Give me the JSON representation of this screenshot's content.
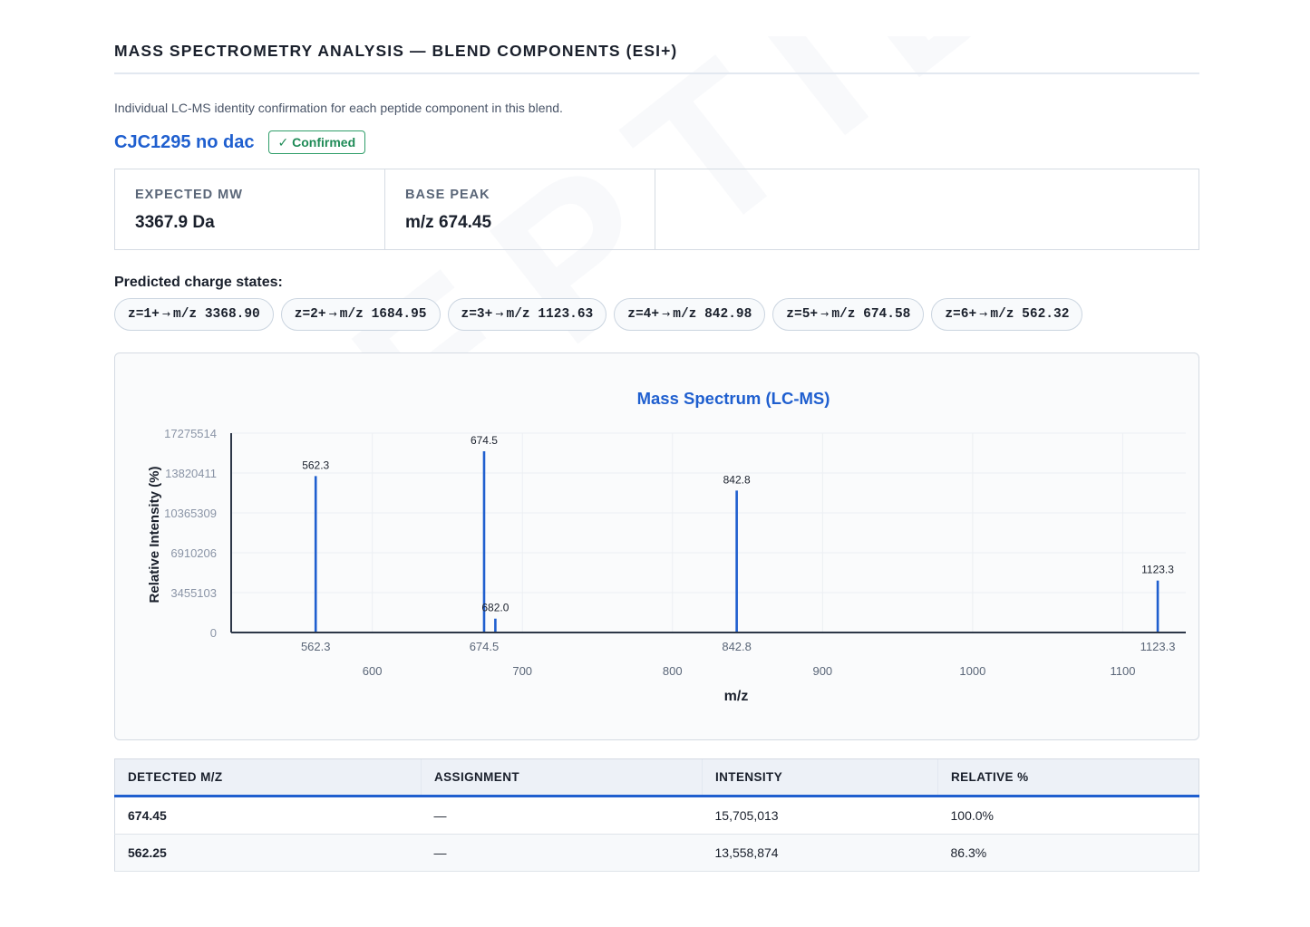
{
  "watermark": "PEPTIDE VERIFY",
  "section_title": "MASS SPECTROMETRY ANALYSIS — BLEND COMPONENTS (ESI+)",
  "intro": "Individual LC-MS identity confirmation for each peptide component in this blend.",
  "component": {
    "name": "CJC1295 no dac",
    "status": "✓ Confirmed",
    "status_color": "#1f8b57"
  },
  "stats": [
    {
      "label": "EXPECTED MW",
      "value": "3367.9 Da"
    },
    {
      "label": "BASE PEAK",
      "value": "m/z 674.45"
    }
  ],
  "charge_states_title": "Predicted charge states:",
  "charge_states": [
    {
      "z": "z=1+",
      "arrow": "→",
      "mz": "m/z 3368.90"
    },
    {
      "z": "z=2+",
      "arrow": "→",
      "mz": "m/z 1684.95"
    },
    {
      "z": "z=3+",
      "arrow": "→",
      "mz": "m/z 1123.63"
    },
    {
      "z": "z=4+",
      "arrow": "→",
      "mz": "m/z 842.98"
    },
    {
      "z": "z=5+",
      "arrow": "→",
      "mz": "m/z 674.58"
    },
    {
      "z": "z=6+",
      "arrow": "→",
      "mz": "m/z 562.32"
    }
  ],
  "chart_data": {
    "type": "bar",
    "title": "Mass Spectrum (LC-MS)",
    "xlabel": "m/z",
    "ylabel": "Relative Intensity (%)",
    "xlim": [
      506,
      1142
    ],
    "ylim": [
      0,
      17275514
    ],
    "x_ticks": [
      600,
      700,
      800,
      900,
      1000,
      1100
    ],
    "y_ticks": [
      0,
      3455103,
      6910206,
      10365309,
      13820411,
      17275514
    ],
    "peaks": [
      {
        "mz": 562.3,
        "intensity": 13558874,
        "label": "562.3"
      },
      {
        "mz": 674.5,
        "intensity": 15705013,
        "label": "674.5"
      },
      {
        "mz": 682.0,
        "intensity": 1200000,
        "label": "682.0"
      },
      {
        "mz": 842.8,
        "intensity": 12300000,
        "label": "842.8"
      },
      {
        "mz": 1123.3,
        "intensity": 4500000,
        "label": "1123.3"
      }
    ],
    "peak_axis_labels": [
      "562.3",
      "674.5",
      "842.8",
      "1123.3"
    ],
    "peak_axis_values": [
      562.3,
      674.5,
      842.8,
      1123.3
    ],
    "color": "#1f5fcf",
    "grid": true
  },
  "table": {
    "headers": [
      "DETECTED M/Z",
      "ASSIGNMENT",
      "INTENSITY",
      "RELATIVE %"
    ],
    "rows": [
      [
        "674.45",
        "—",
        "15,705,013",
        "100.0%"
      ],
      [
        "562.25",
        "—",
        "13,558,874",
        "86.3%"
      ]
    ]
  }
}
